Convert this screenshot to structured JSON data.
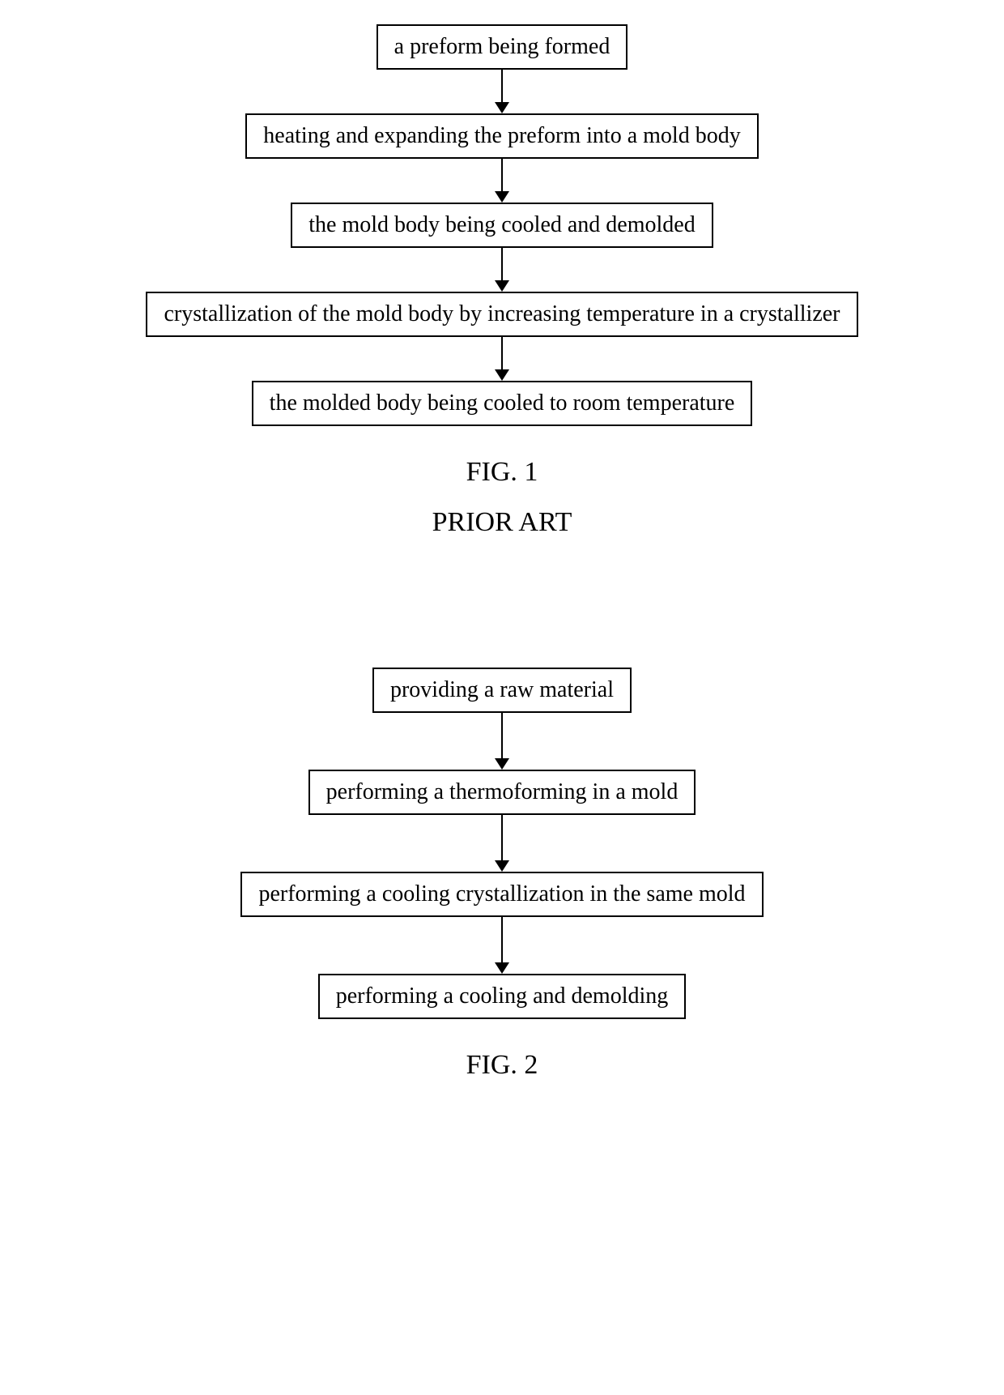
{
  "fig1": {
    "type": "flowchart",
    "steps": [
      "a preform being formed",
      "heating and expanding the preform into a mold body",
      "the mold body being cooled and demolded",
      "crystallization of the mold body by increasing temperature in a crystallizer",
      "the molded body being cooled to room temperature"
    ],
    "caption": "FIG. 1",
    "subcaption": "PRIOR ART",
    "box_border_color": "#000000",
    "box_border_width": 2,
    "box_padding_v": 10,
    "box_padding_h": 20,
    "text_fontsize": 28,
    "text_color": "#000000",
    "arrow_line_height": 40,
    "arrow_line_width": 2,
    "arrow_color": "#000000",
    "arrow_head_width": 18,
    "arrow_head_height": 14,
    "background_color": "#ffffff",
    "caption_fontsize": 34
  },
  "fig2": {
    "type": "flowchart",
    "steps": [
      "providing a raw material",
      "performing a thermoforming in a mold",
      "performing a cooling crystallization in the same mold",
      "performing a cooling and demolding"
    ],
    "caption": "FIG. 2",
    "box_border_color": "#000000",
    "box_border_width": 2,
    "box_padding_v": 10,
    "box_padding_h": 20,
    "text_fontsize": 28,
    "text_color": "#000000",
    "arrow_line_height": 56,
    "arrow_line_width": 2,
    "arrow_color": "#000000",
    "arrow_head_width": 18,
    "arrow_head_height": 14,
    "background_color": "#ffffff",
    "caption_fontsize": 34
  }
}
